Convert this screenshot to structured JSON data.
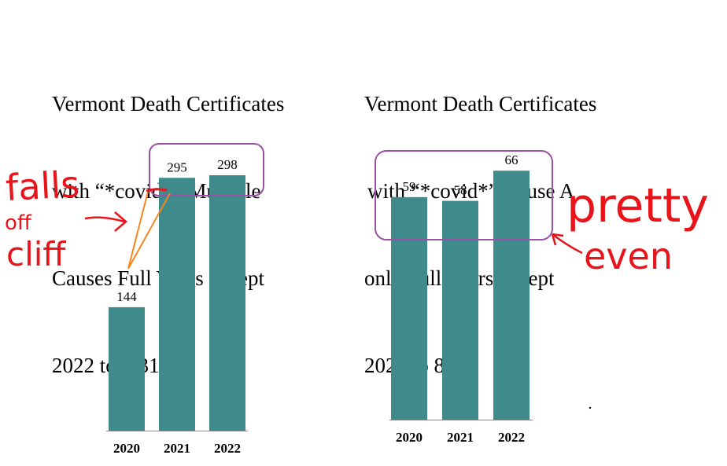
{
  "chart_data": [
    {
      "type": "bar",
      "title": [
        "Vermont Death Certificates",
        "with “*covid*” Multiple",
        "Causes Full Years except",
        "2022 to 8/31"
      ],
      "categories": [
        "2020",
        "2021",
        "2022"
      ],
      "values": [
        144,
        295,
        298
      ],
      "data_labels": [
        "144",
        "295",
        "298"
      ],
      "color": "#3f8b8c",
      "ylim": [
        0,
        320
      ],
      "grid": false
    },
    {
      "type": "bar",
      "title": [
        "Vermont Death Certificates",
        "with “*covid*” Cause A",
        "only Full Years except",
        "2022 to 8/31"
      ],
      "categories": [
        "2020",
        "2021",
        "2022"
      ],
      "values": [
        59,
        58,
        66
      ],
      "data_labels": [
        "59",
        "58",
        "66"
      ],
      "color": "#3f8b8c",
      "ylim": [
        0,
        70
      ],
      "grid": false
    }
  ],
  "annotations": {
    "left_handwriting": [
      "falls",
      "off",
      "cliff"
    ],
    "right_handwriting": [
      "pretty",
      "even"
    ],
    "highlight_box_color": "#9b4fa6",
    "pen_color": "#e8141a",
    "line_color": "#f7861e"
  }
}
